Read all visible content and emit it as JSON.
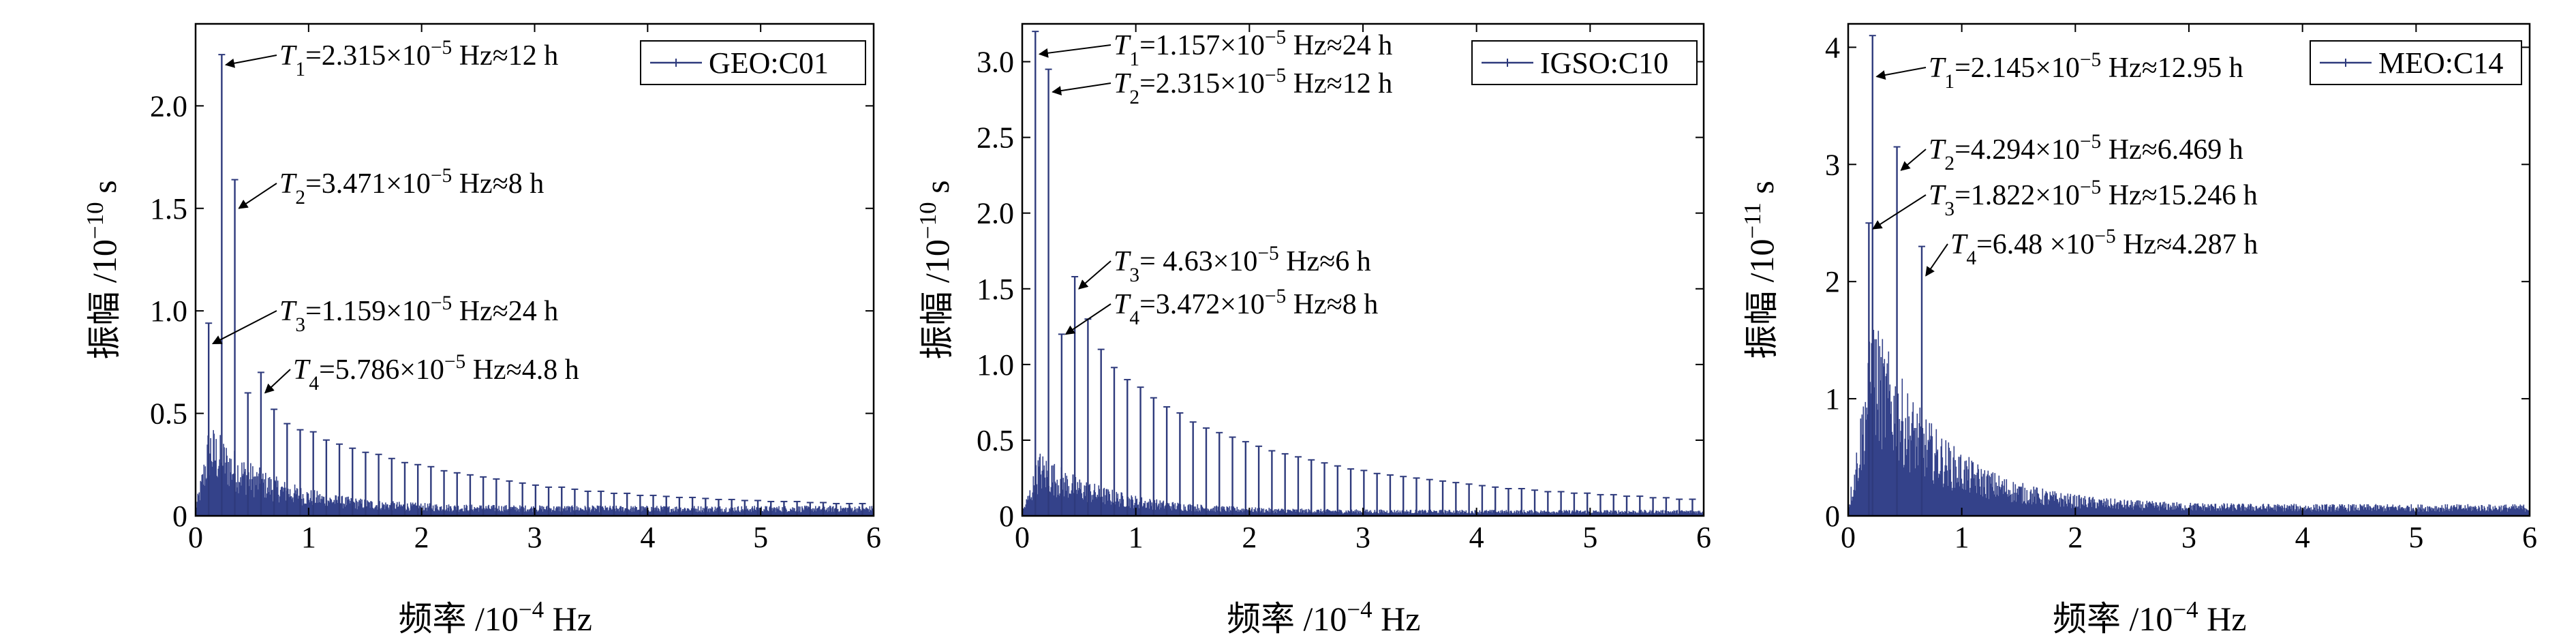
{
  "chart_data": [
    {
      "type": "stem",
      "legend": "GEO:C01",
      "ylabel": {
        "prefix": "振幅 /10",
        "exp": "−10",
        "suffix": " s"
      },
      "xlabel": {
        "prefix": "频率 /10",
        "exp": "−4",
        "suffix": " Hz"
      },
      "xlim": [
        0,
        6
      ],
      "ylim": [
        0,
        2.4
      ],
      "x_ticks": [
        "0",
        "1",
        "2",
        "3",
        "4",
        "5",
        "6"
      ],
      "y_ticks": [
        "0",
        "0.5",
        "1.0",
        "1.5",
        "2.0"
      ],
      "y_tick_values": [
        0,
        0.5,
        1.0,
        1.5,
        2.0
      ],
      "harmonic_base": 0.1157,
      "harmonic_values": [
        0.94,
        2.25,
        1.64,
        0.6,
        0.7,
        0.52,
        0.45,
        0.42,
        0.41,
        0.37,
        0.35,
        0.33,
        0.31,
        0.3,
        0.28,
        0.26,
        0.25,
        0.24,
        0.22,
        0.21,
        0.2,
        0.19,
        0.18,
        0.17,
        0.16,
        0.15,
        0.14,
        0.14,
        0.13,
        0.12,
        0.12,
        0.11,
        0.11,
        0.1,
        0.1,
        0.095,
        0.09,
        0.09,
        0.085,
        0.08,
        0.08,
        0.075,
        0.075,
        0.07,
        0.07,
        0.07,
        0.065,
        0.065,
        0.06,
        0.06,
        0.06
      ],
      "noise": {
        "peak_x": 0.12,
        "peak": 0.42,
        "decay": 0.55,
        "floor": 0.05
      },
      "annotations": [
        {
          "sym": "T",
          "sub": "1",
          "text": "=2.315×10",
          "exp": "−5",
          "tail": " Hz≈12 h",
          "x": 0.2315,
          "y": 2.2
        },
        {
          "sym": "T",
          "sub": "2",
          "text": "=3.471×10",
          "exp": "−5",
          "tail": " Hz≈8 h",
          "x": 0.3471,
          "y": 1.5
        },
        {
          "sym": "T",
          "sub": "3",
          "text": "=1.159×10",
          "exp": "−5",
          "tail": "  Hz≈24 h",
          "x": 0.1159,
          "y": 0.84
        },
        {
          "sym": "T",
          "sub": "4",
          "text": "=5.786×10",
          "exp": "−5",
          "tail": "  Hz≈4.8 h",
          "x": 0.5786,
          "y": 0.6
        }
      ]
    },
    {
      "type": "stem",
      "legend": "IGSO:C10",
      "ylabel": {
        "prefix": "振幅 /10",
        "exp": "−10",
        "suffix": " s"
      },
      "xlabel": {
        "prefix": "频率 /10",
        "exp": "−4",
        "suffix": " Hz"
      },
      "xlim": [
        0,
        6
      ],
      "ylim": [
        0,
        3.25
      ],
      "x_ticks": [
        "0",
        "1",
        "2",
        "3",
        "4",
        "5",
        "6"
      ],
      "y_ticks": [
        "0",
        "0.5",
        "1.0",
        "1.5",
        "2.0",
        "2.5",
        "3.0"
      ],
      "y_tick_values": [
        0,
        0.5,
        1.0,
        1.5,
        2.0,
        2.5,
        3.0
      ],
      "harmonic_base": 0.1157,
      "harmonic_values": [
        3.2,
        2.95,
        1.2,
        1.58,
        1.3,
        1.1,
        0.98,
        0.9,
        0.85,
        0.78,
        0.72,
        0.68,
        0.62,
        0.58,
        0.55,
        0.52,
        0.49,
        0.46,
        0.43,
        0.41,
        0.39,
        0.37,
        0.35,
        0.33,
        0.31,
        0.3,
        0.28,
        0.27,
        0.26,
        0.25,
        0.24,
        0.23,
        0.22,
        0.21,
        0.2,
        0.19,
        0.18,
        0.18,
        0.17,
        0.16,
        0.16,
        0.15,
        0.15,
        0.14,
        0.14,
        0.13,
        0.13,
        0.12,
        0.12,
        0.11,
        0.11
      ],
      "noise": {
        "peak_x": 0.15,
        "peak": 0.4,
        "decay": 0.6,
        "floor": 0.04
      },
      "annotations": [
        {
          "sym": "T",
          "sub": "1",
          "text": "=1.157×10",
          "exp": "−5",
          "tail": " Hz≈24 h",
          "x": 0.1157,
          "y": 3.05
        },
        {
          "sym": "T",
          "sub": "2",
          "text": "=2.315×10",
          "exp": "−5",
          "tail": " Hz≈12 h",
          "x": 0.2315,
          "y": 2.8
        },
        {
          "sym": "T",
          "sub": "3",
          "text": "= 4.63×10",
          "exp": "−5",
          "tail": "  Hz≈6 h",
          "x": 0.463,
          "y": 1.5
        },
        {
          "sym": "T",
          "sub": "4",
          "text": "=3.472×10",
          "exp": "−5",
          "tail": "  Hz≈8 h",
          "x": 0.3472,
          "y": 1.2
        }
      ]
    },
    {
      "type": "stem",
      "legend": "MEO:C14",
      "ylabel": {
        "prefix": "振幅 /10",
        "exp": "−11",
        "suffix": " s"
      },
      "xlabel": {
        "prefix": "频率 /10",
        "exp": "−4",
        "suffix": " Hz"
      },
      "xlim": [
        0,
        6
      ],
      "ylim": [
        0,
        4.2
      ],
      "x_ticks": [
        "0",
        "1",
        "2",
        "3",
        "4",
        "5",
        "6"
      ],
      "y_ticks": [
        "0",
        "1",
        "2",
        "3",
        "4"
      ],
      "y_tick_values": [
        0,
        1,
        2,
        3,
        4
      ],
      "peaks": [
        {
          "x": 0.2145,
          "y": 4.1
        },
        {
          "x": 0.4294,
          "y": 3.15
        },
        {
          "x": 0.1822,
          "y": 2.5
        },
        {
          "x": 0.648,
          "y": 2.3
        }
      ],
      "noise": {
        "peak_x": 0.2,
        "peak": 1.7,
        "decay": 0.6,
        "floor": 0.1
      },
      "annotations": [
        {
          "sym": "T",
          "sub": "1",
          "text": "=2.145×10",
          "exp": "−5",
          "tail": " Hz≈12.95 h",
          "x": 0.2145,
          "y": 3.75
        },
        {
          "sym": "T",
          "sub": "2",
          "text": "=4.294×10",
          "exp": "−5",
          "tail": " Hz≈6.469 h",
          "x": 0.4294,
          "y": 2.95
        },
        {
          "sym": "T",
          "sub": "3",
          "text": "=1.822×10",
          "exp": "−5",
          "tail": "  Hz≈15.246 h",
          "x": 0.1822,
          "y": 2.45
        },
        {
          "sym": "T",
          "sub": "4",
          "text": "=6.48  ×10",
          "exp": "−5",
          "tail": "  Hz≈4.287 h",
          "x": 0.648,
          "y": 2.05
        }
      ]
    }
  ],
  "colors": {
    "series": "#2e3a7c",
    "noise": "#34428a",
    "axis": "#000000"
  }
}
